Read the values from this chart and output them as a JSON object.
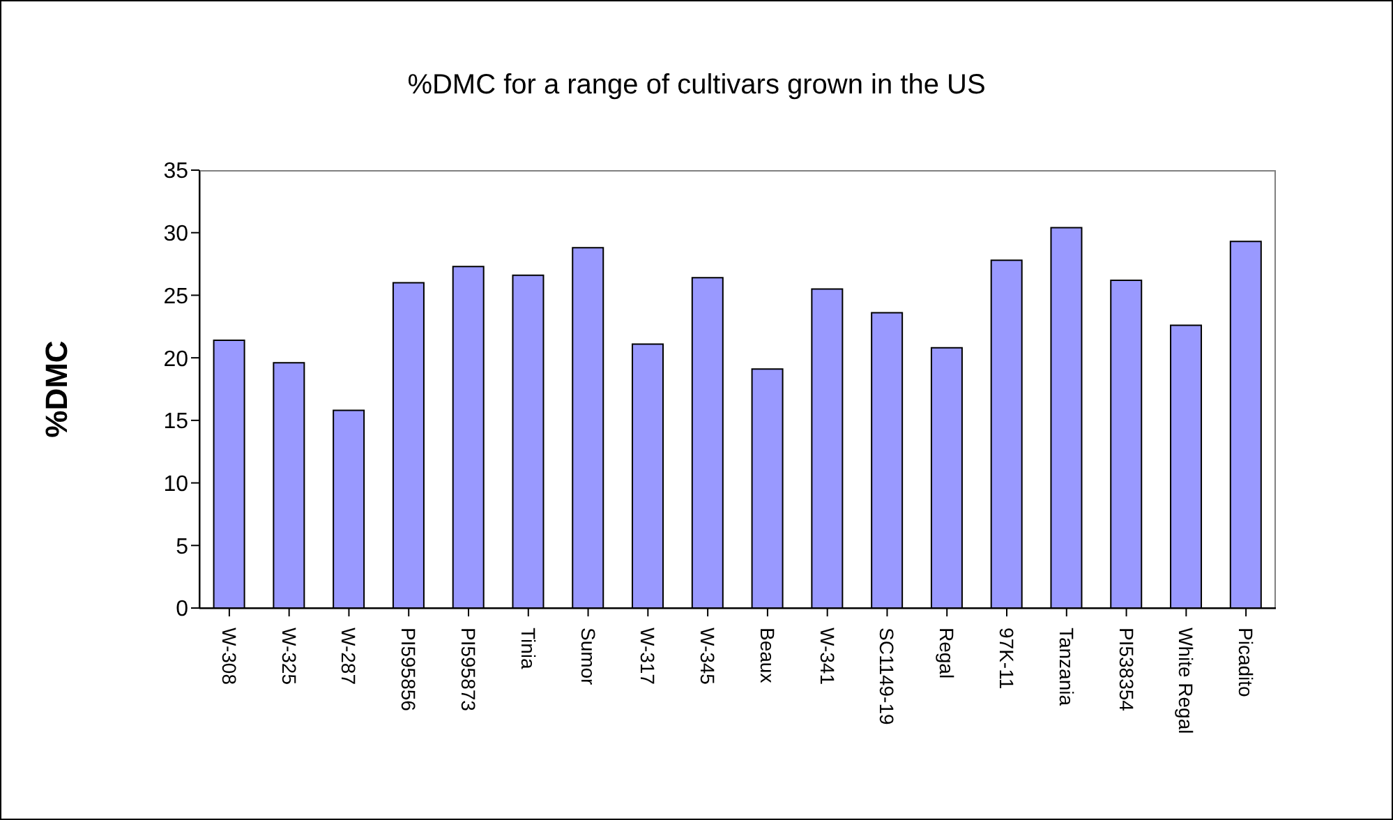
{
  "chart_data": {
    "type": "bar",
    "title": "%DMC for a range of cultivars grown in the US",
    "ylabel": "%DMC",
    "categories": [
      "W-308",
      "W-325",
      "W-287",
      "PI595856",
      "PI595873",
      "Tinia",
      "Sumor",
      "W-317",
      "W-345",
      "Beaux",
      "W-341",
      "SC1149-19",
      "Regal",
      "97K-11",
      "Tanzania",
      "PI538354",
      "White Regal",
      "Picadito"
    ],
    "values": [
      21.4,
      19.6,
      15.8,
      26.0,
      27.3,
      26.6,
      28.8,
      21.1,
      26.4,
      19.1,
      25.5,
      23.6,
      20.8,
      27.8,
      30.4,
      26.2,
      22.6,
      29.3
    ],
    "color": "#9999ff",
    "ylim": [
      0,
      35
    ],
    "yticks": [
      0,
      5,
      10,
      15,
      20,
      25,
      30,
      35
    ],
    "grid": false,
    "legend": false
  }
}
